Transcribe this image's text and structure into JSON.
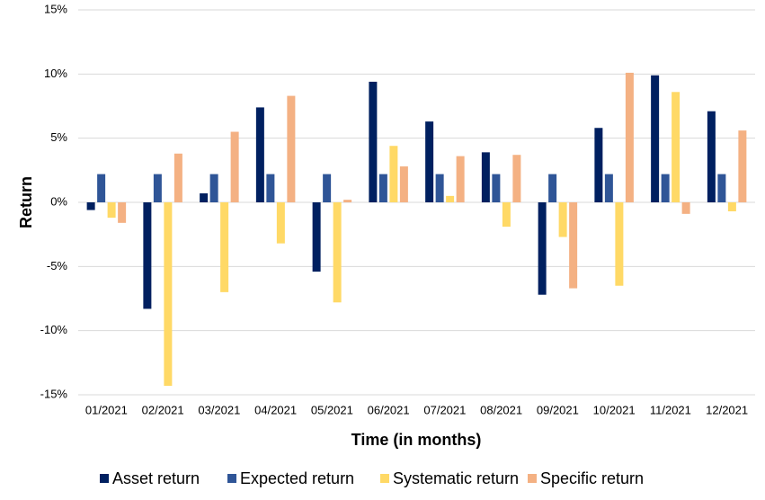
{
  "chart_data": {
    "type": "bar",
    "x_label": "Time (in months)",
    "y_label": "Return",
    "categories": [
      "01/2021",
      "02/2021",
      "03/2021",
      "04/2021",
      "05/2021",
      "06/2021",
      "07/2021",
      "08/2021",
      "09/2021",
      "10/2021",
      "11/2021",
      "12/2021"
    ],
    "series": [
      {
        "name": "Asset return",
        "color": "#002060",
        "values": [
          -0.6,
          -8.3,
          0.7,
          7.4,
          -5.4,
          9.4,
          6.3,
          3.9,
          -7.2,
          5.8,
          9.9,
          7.1
        ]
      },
      {
        "name": "Expected return",
        "color": "#2f5597",
        "values": [
          2.2,
          2.2,
          2.2,
          2.2,
          2.2,
          2.2,
          2.2,
          2.2,
          2.2,
          2.2,
          2.2,
          2.2
        ]
      },
      {
        "name": "Systematic return",
        "color": "#ffd966",
        "values": [
          -1.2,
          -14.3,
          -7.0,
          -3.2,
          -7.8,
          4.4,
          0.5,
          -1.9,
          -2.7,
          -6.5,
          8.6,
          -0.7
        ]
      },
      {
        "name": "Specific return",
        "color": "#f4b183",
        "values": [
          -1.6,
          3.8,
          5.5,
          8.3,
          0.2,
          2.8,
          3.6,
          3.7,
          -6.7,
          10.1,
          -0.9,
          5.6
        ]
      }
    ],
    "ylim": [
      -15,
      15
    ],
    "yticks": [
      {
        "value": -15,
        "label": "-15%"
      },
      {
        "value": -10,
        "label": "-10%"
      },
      {
        "value": -5,
        "label": "-5%"
      },
      {
        "value": 0,
        "label": "0%"
      },
      {
        "value": 5,
        "label": "5%"
      },
      {
        "value": 10,
        "label": "10%"
      },
      {
        "value": 15,
        "label": "15%"
      }
    ],
    "grid": true
  }
}
